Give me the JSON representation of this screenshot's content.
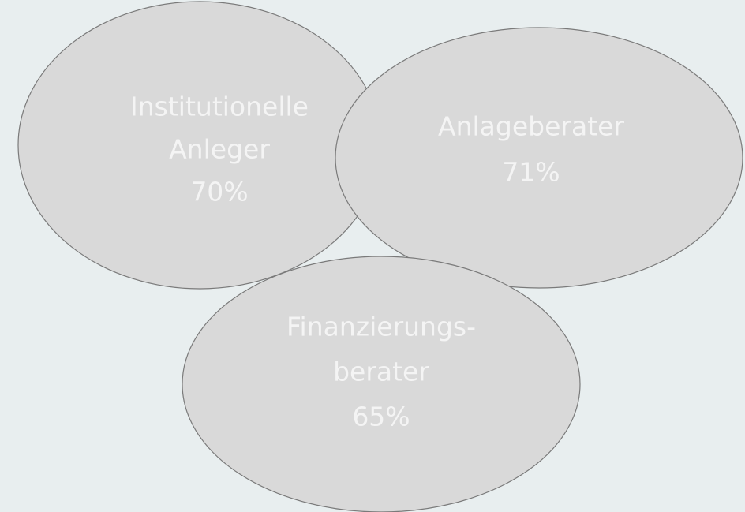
{
  "nodes": [
    {
      "lines": [
        "Institutionelle",
        "Anleger",
        "70%"
      ]
    },
    {
      "lines": [
        "Anlageberater",
        "71%"
      ]
    },
    {
      "lines": [
        "Finanzierungs-",
        "berater",
        "65%"
      ]
    }
  ]
}
